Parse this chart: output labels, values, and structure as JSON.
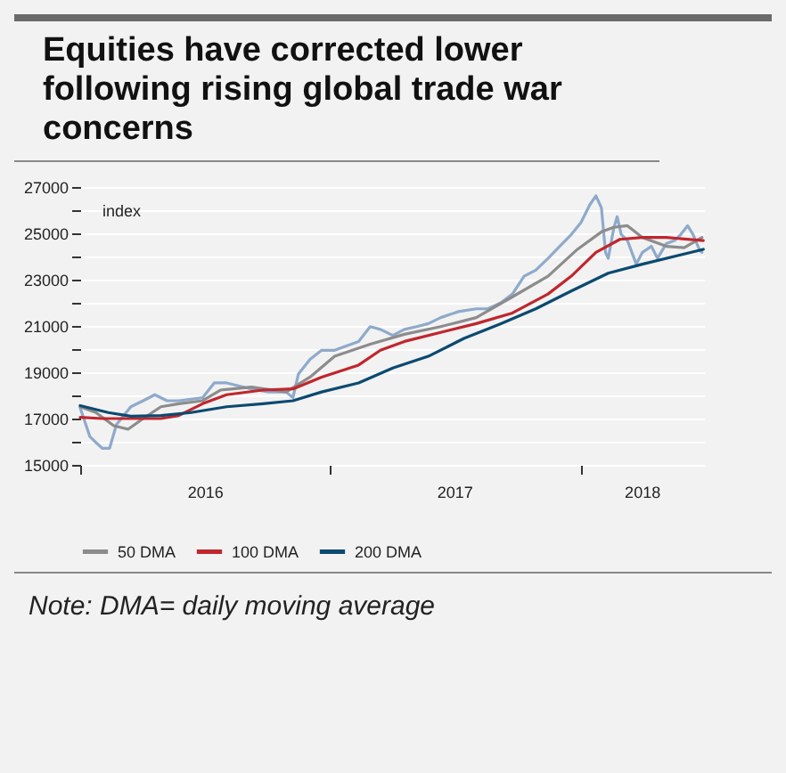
{
  "chart_data": {
    "type": "line",
    "title": "Equities have corrected lower following rising global trade war concerns",
    "ylabel": "index",
    "annotations": [
      "Note: DMA= daily moving average"
    ],
    "xlim": [
      "2016-01-01",
      "2018-07-01"
    ],
    "xticks": [
      {
        "value": "2016-01-01",
        "label": null
      },
      {
        "value": "2016-07-01",
        "label": "2016"
      },
      {
        "value": "2017-01-01",
        "label": null
      },
      {
        "value": "2017-07-01",
        "label": "2017"
      },
      {
        "value": "2018-01-01",
        "label": null
      },
      {
        "value": "2018-04-01",
        "label": "2018"
      }
    ],
    "ylim": [
      15000,
      27000
    ],
    "yticks": [
      15000,
      {
        "value": 16000,
        "label": null
      },
      17000,
      {
        "value": 18000,
        "label": null
      },
      19000,
      {
        "value": 20000,
        "label": null
      },
      21000,
      {
        "value": 22000,
        "label": null
      },
      23000,
      {
        "value": 24000,
        "label": null
      },
      25000,
      {
        "value": 26000,
        "label": null
      },
      27000
    ],
    "grid": "y",
    "legend": "bottom",
    "line_style": "solid",
    "series": [
      {
        "color": "#8eaacb",
        "x": [
          "2016-01-01",
          "2016-01-15",
          "2016-01-24",
          "2016-02-02",
          "2016-02-13",
          "2016-02-23",
          "2016-03-15",
          "2016-04-02",
          "2016-04-19",
          "2016-05-07",
          "2016-05-24",
          "2016-06-28",
          "2016-07-15",
          "2016-08-02",
          "2016-09-07",
          "2016-10-02",
          "2016-10-28",
          "2016-11-07",
          "2016-11-15",
          "2016-12-02",
          "2016-12-19",
          "2017-01-07",
          "2017-02-11",
          "2017-02-28",
          "2017-03-15",
          "2017-04-02",
          "2017-04-19",
          "2017-05-07",
          "2017-05-24",
          "2017-06-11",
          "2017-07-07",
          "2017-08-02",
          "2017-08-19",
          "2017-09-07",
          "2017-09-24",
          "2017-10-11",
          "2017-10-28",
          "2017-11-15",
          "2017-12-02",
          "2017-12-19",
          "2018-01-02",
          "2018-01-15",
          "2018-01-24",
          "2018-02-01",
          "2018-02-07",
          "2018-02-11",
          "2018-02-19",
          "2018-02-24",
          "2018-03-02",
          "2018-03-11",
          "2018-03-24",
          "2018-04-02",
          "2018-04-15",
          "2018-04-24",
          "2018-05-07",
          "2018-05-19",
          "2018-05-28",
          "2018-06-07",
          "2018-06-15",
          "2018-06-24",
          "2018-06-28"
        ],
        "values": [
          17460,
          16230,
          15970,
          15720,
          15720,
          16740,
          17510,
          17770,
          18030,
          17770,
          17770,
          17900,
          18540,
          18540,
          18280,
          18150,
          18150,
          17900,
          18920,
          19560,
          19950,
          19950,
          20330,
          20970,
          20850,
          20590,
          20850,
          20970,
          21100,
          21360,
          21620,
          21740,
          21740,
          22000,
          22380,
          23150,
          23410,
          23920,
          24440,
          24950,
          25460,
          26230,
          26620,
          26100,
          24180,
          23920,
          25210,
          25720,
          24950,
          24690,
          23670,
          24180,
          24440,
          23920,
          24560,
          24690,
          24950,
          25330,
          24950,
          24310,
          24180
        ]
      },
      {
        "name": "50 DMA",
        "color": "#8c8c8c",
        "x": [
          "2016-01-01",
          "2016-01-24",
          "2016-02-19",
          "2016-03-11",
          "2016-04-02",
          "2016-04-28",
          "2016-05-24",
          "2016-06-28",
          "2016-07-24",
          "2016-09-07",
          "2016-10-28",
          "2016-12-02",
          "2017-01-07",
          "2017-02-28",
          "2017-04-19",
          "2017-06-11",
          "2017-08-02",
          "2017-09-24",
          "2017-11-15",
          "2017-12-28",
          "2018-02-02",
          "2018-02-19",
          "2018-03-11",
          "2018-04-02",
          "2018-05-07",
          "2018-06-02",
          "2018-06-28"
        ],
        "values": [
          17510,
          17260,
          16690,
          16540,
          17000,
          17510,
          17640,
          17770,
          18230,
          18360,
          18150,
          18790,
          19690,
          20210,
          20640,
          20970,
          21360,
          22260,
          23150,
          24310,
          25080,
          25260,
          25330,
          24820,
          24440,
          24380,
          24820
        ]
      },
      {
        "name": "100 DMA",
        "color": "#c0262d",
        "x": [
          "2016-01-01",
          "2016-02-02",
          "2016-03-15",
          "2016-04-28",
          "2016-05-24",
          "2016-06-28",
          "2016-08-02",
          "2016-09-24",
          "2016-11-07",
          "2016-12-19",
          "2017-02-11",
          "2017-03-15",
          "2017-04-19",
          "2017-06-11",
          "2017-08-02",
          "2017-09-24",
          "2017-11-15",
          "2017-12-19",
          "2018-01-24",
          "2018-02-28",
          "2018-04-02",
          "2018-05-07",
          "2018-06-30"
        ],
        "values": [
          17050,
          17000,
          17000,
          17000,
          17130,
          17640,
          18030,
          18230,
          18280,
          18790,
          19310,
          19950,
          20330,
          20720,
          21100,
          21560,
          22380,
          23150,
          24180,
          24740,
          24820,
          24820,
          24690
        ]
      },
      {
        "name": "200 DMA",
        "color": "#0b4a70",
        "x": [
          "2016-01-01",
          "2016-02-11",
          "2016-03-15",
          "2016-04-28",
          "2016-06-11",
          "2016-08-02",
          "2016-09-24",
          "2016-11-07",
          "2016-12-19",
          "2017-02-11",
          "2017-04-02",
          "2017-05-24",
          "2017-07-15",
          "2017-09-07",
          "2017-10-28",
          "2017-12-19",
          "2018-02-11",
          "2018-04-02",
          "2018-06-30"
        ],
        "values": [
          17560,
          17260,
          17100,
          17130,
          17260,
          17510,
          17640,
          17770,
          18150,
          18540,
          19180,
          19690,
          20460,
          21100,
          21740,
          22510,
          23280,
          23670,
          24310
        ]
      }
    ]
  }
}
